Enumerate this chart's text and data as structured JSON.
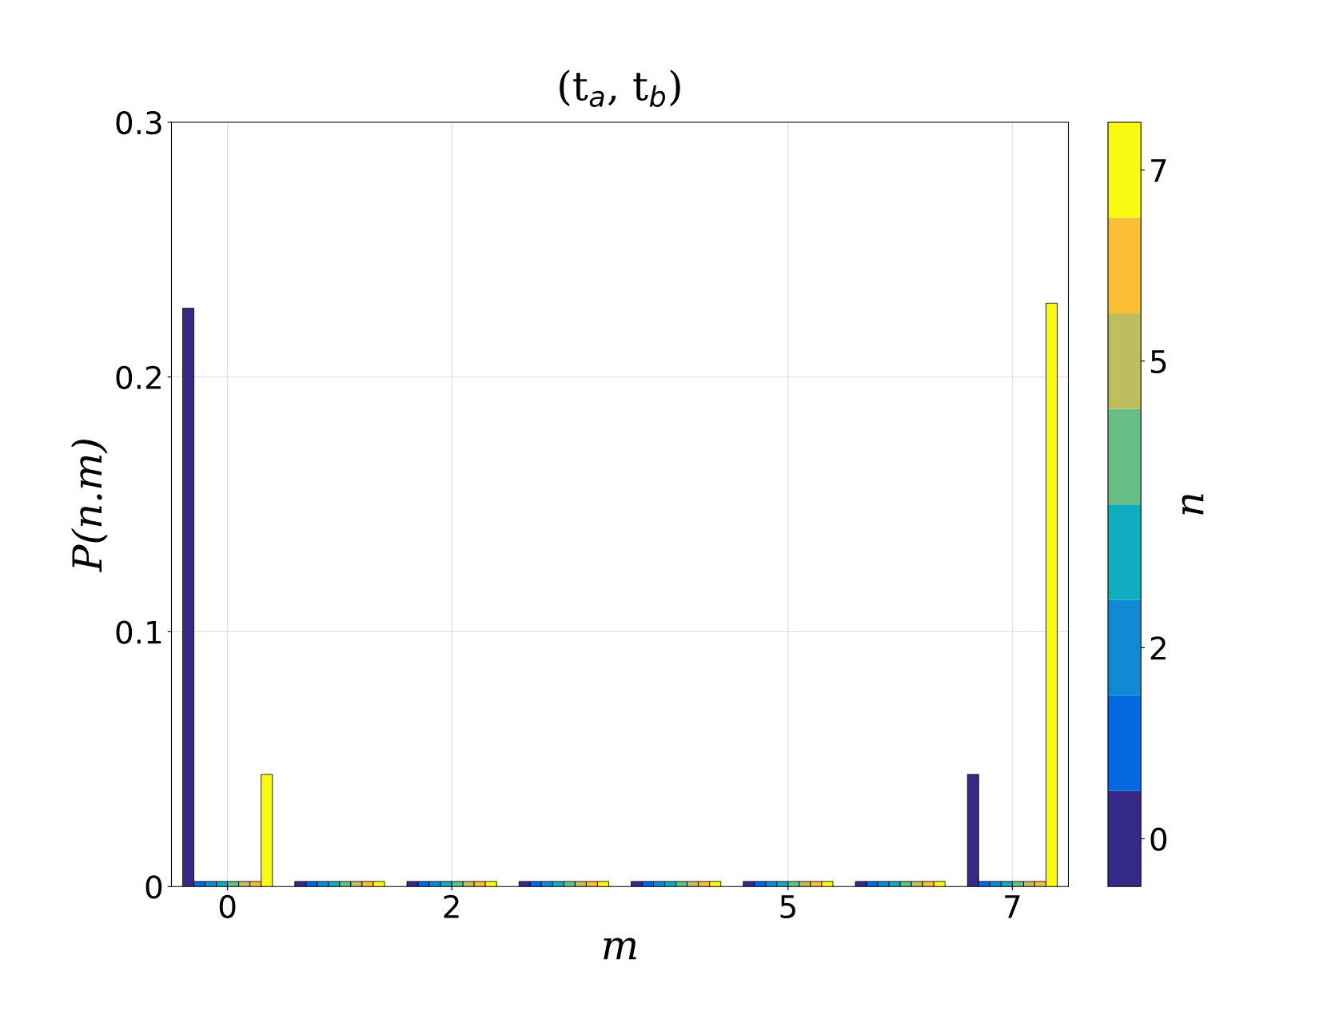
{
  "chart_data": {
    "type": "bar",
    "title": "(t$_{a}$, t$_{b}$)",
    "xlabel": "m",
    "ylabel": "P(n.m)",
    "clabel": "n",
    "x": [
      0,
      1,
      2,
      3,
      4,
      5,
      6,
      7
    ],
    "xlim": [
      -0.5,
      7.5
    ],
    "xticks": [
      0,
      2,
      5,
      7
    ],
    "ylim": [
      0,
      0.3
    ],
    "yticks": [
      0,
      0.1,
      0.2,
      0.3
    ],
    "grid": true,
    "clim": [
      -0.5,
      7.5
    ],
    "cticks": [
      0,
      2,
      5,
      7
    ],
    "series": [
      {
        "color": "#352a87",
        "values": [
          0.227,
          0.002,
          0.002,
          0.002,
          0.002,
          0.002,
          0.002,
          0.044
        ]
      },
      {
        "color": "#0468e1",
        "values": [
          0.002,
          0.002,
          0.002,
          0.002,
          0.002,
          0.002,
          0.002,
          0.002
        ]
      },
      {
        "color": "#1289d4",
        "values": [
          0.002,
          0.002,
          0.002,
          0.002,
          0.002,
          0.002,
          0.002,
          0.002
        ]
      },
      {
        "color": "#0fadbf",
        "values": [
          0.002,
          0.002,
          0.002,
          0.002,
          0.002,
          0.002,
          0.002,
          0.002
        ]
      },
      {
        "color": "#67bf85",
        "values": [
          0.002,
          0.002,
          0.002,
          0.002,
          0.002,
          0.002,
          0.002,
          0.002
        ]
      },
      {
        "color": "#c0bc60",
        "values": [
          0.002,
          0.002,
          0.002,
          0.002,
          0.002,
          0.002,
          0.002,
          0.002
        ]
      },
      {
        "color": "#fcbe37",
        "values": [
          0.002,
          0.002,
          0.002,
          0.002,
          0.002,
          0.002,
          0.002,
          0.002
        ]
      },
      {
        "color": "#f9fa14",
        "values": [
          0.044,
          0.002,
          0.002,
          0.002,
          0.002,
          0.002,
          0.002,
          0.229
        ]
      }
    ]
  }
}
